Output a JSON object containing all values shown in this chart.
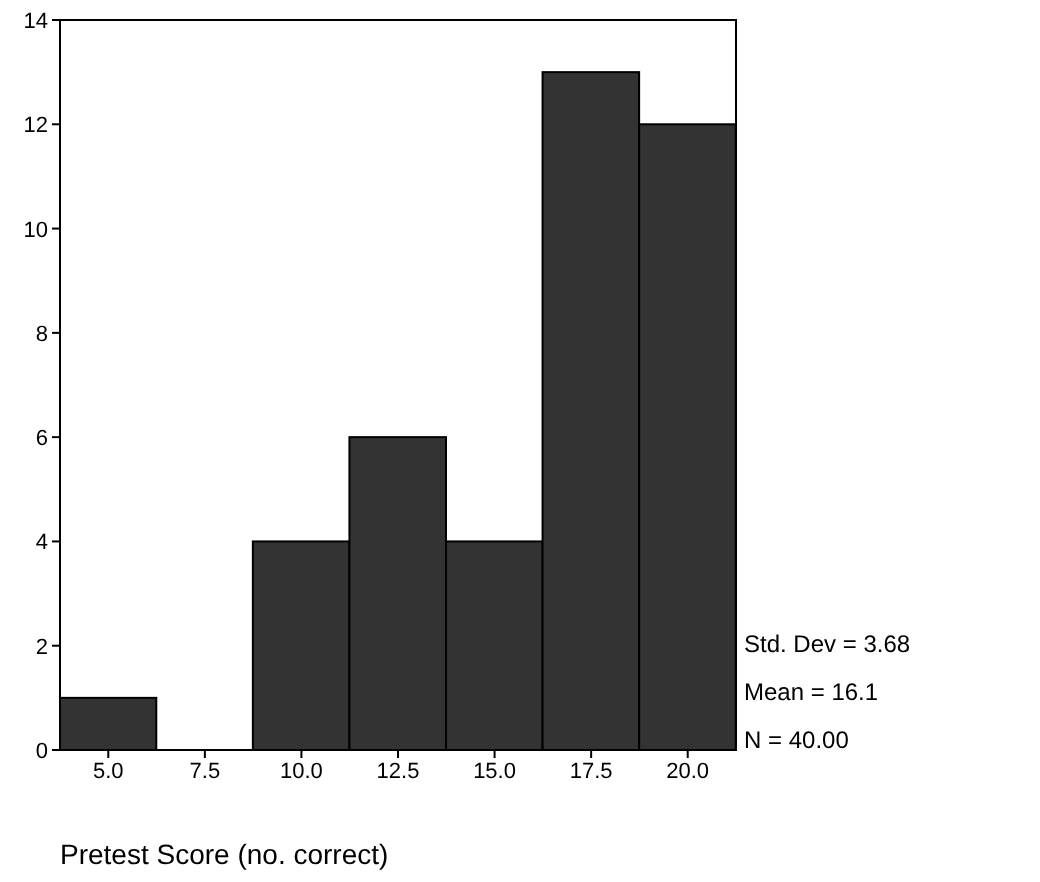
{
  "chart_data": {
    "type": "histogram",
    "xlabel": "Pretest Score (no. correct)",
    "bins": [
      3.75,
      6.25,
      8.75,
      11.25,
      13.75,
      16.25,
      18.75,
      21.25
    ],
    "values": [
      1,
      0,
      4,
      6,
      4,
      13,
      12
    ],
    "color": "#333333",
    "xlim": [
      3.75,
      21.25
    ],
    "xticks": [
      {
        "value": 5,
        "label": "5.0"
      },
      {
        "value": 7.5,
        "label": "7.5"
      },
      {
        "value": 10,
        "label": "10.0"
      },
      {
        "value": 12.5,
        "label": "12.5"
      },
      {
        "value": 15,
        "label": "15.0"
      },
      {
        "value": 17.5,
        "label": "17.5"
      },
      {
        "value": 20,
        "label": "20.0"
      }
    ],
    "ylim": [
      0,
      14
    ],
    "yticks": [
      0,
      2,
      4,
      6,
      8,
      10,
      12,
      14
    ],
    "grid": false,
    "annotations": [
      "Std. Dev = 3.68",
      "Mean = 16.1",
      "N = 40.00"
    ]
  }
}
